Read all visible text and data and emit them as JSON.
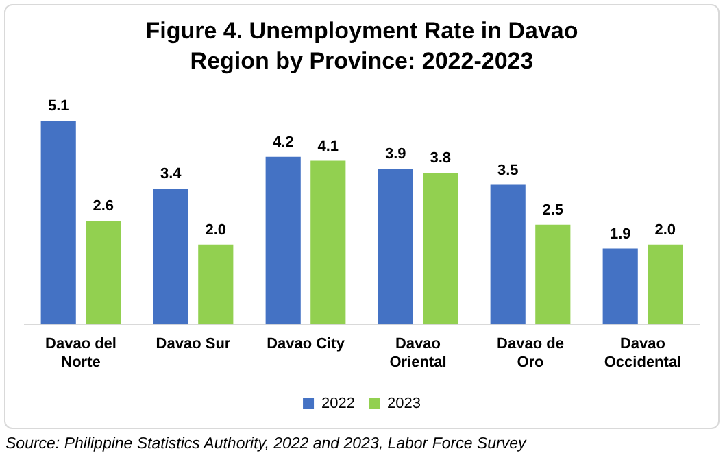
{
  "chart_data": {
    "type": "bar",
    "title": "Figure 4. Unemployment Rate in Davao Region by Province: 2022-2023",
    "categories": [
      "Davao del Norte",
      "Davao Sur",
      "Davao City",
      "Davao Oriental",
      "Davao de Oro",
      "Davao Occidental"
    ],
    "series": [
      {
        "name": "2022",
        "color": "#4472c4",
        "values": [
          5.1,
          3.4,
          4.2,
          3.9,
          3.5,
          1.9
        ],
        "value_labels": [
          "5.1",
          "3.4",
          "4.2",
          "3.9",
          "3.5",
          "1.9"
        ]
      },
      {
        "name": "2023",
        "color": "#92d050",
        "values": [
          2.6,
          2.0,
          4.1,
          3.8,
          2.5,
          2.0
        ],
        "value_labels": [
          "2.6",
          "2.0",
          "4.1",
          "3.8",
          "2.5",
          "2.0"
        ]
      }
    ],
    "tick_labels": "x",
    "grid": false,
    "legend": "bottom",
    "annotations": [
      "Source: Philippine Statistics Authority, 2022 and 2023, Labor Force Survey"
    ]
  }
}
